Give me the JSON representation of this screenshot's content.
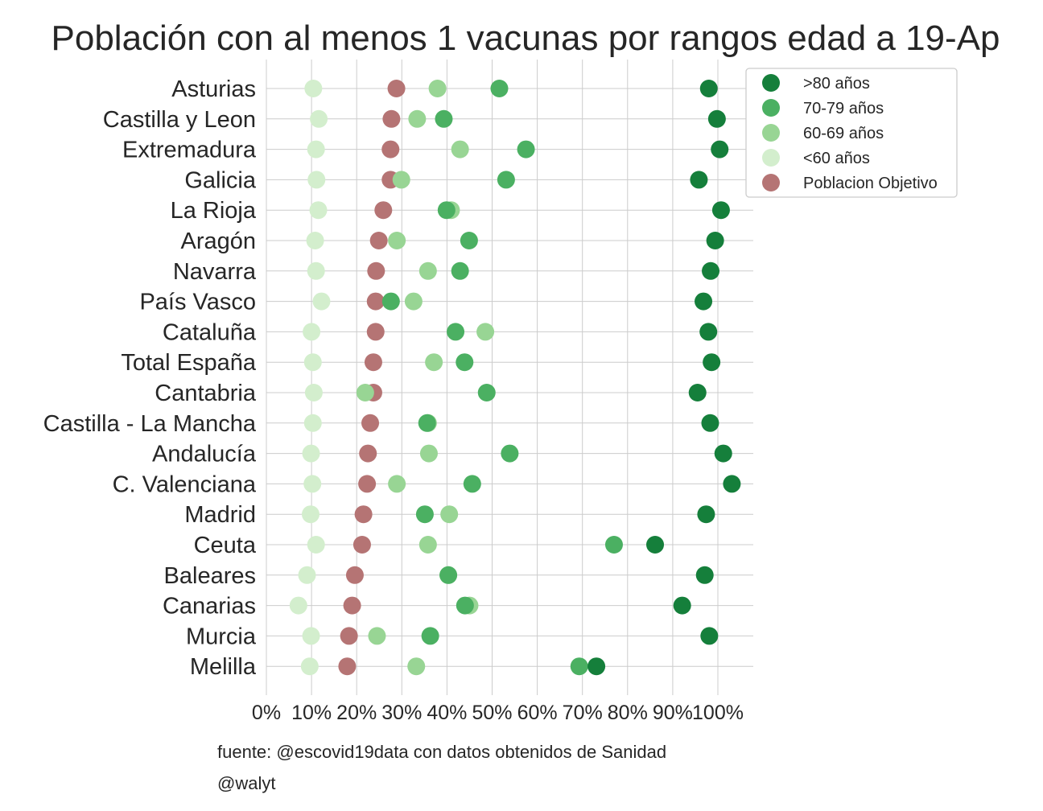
{
  "chart_data": {
    "type": "scatter",
    "title": "Población con al menos 1 vacunas por rangos edad a 19-Ap",
    "xlabel": "",
    "ylabel": "",
    "xlim": [
      0,
      108
    ],
    "xticks": [
      "0%",
      "10%",
      "20%",
      "30%",
      "40%",
      "50%",
      "60%",
      "70%",
      "80%",
      "90%",
      "100%"
    ],
    "grid": true,
    "legend_position": "top-right, outside plot",
    "highlight_category": "Total España",
    "highlight_color": "#ff0000",
    "categories": [
      "Asturias",
      "Castilla y Leon",
      "Extremadura",
      "Galicia",
      "La Rioja",
      "Aragón",
      "Navarra",
      "País Vasco",
      "Cataluña",
      "Total España",
      "Cantabria",
      "Castilla - La Mancha",
      "Andalucía",
      "C. Valenciana",
      "Madrid",
      "Ceuta",
      "Baleares",
      "Canarias",
      "Murcia",
      "Melilla"
    ],
    "series": [
      {
        "name": "Poblacion Objetivo",
        "color": "#b57474",
        "values": [
          28.8,
          27.7,
          27.5,
          27.5,
          25.9,
          24.9,
          24.3,
          24.2,
          24.2,
          23.7,
          23.7,
          23.0,
          22.5,
          22.3,
          21.5,
          21.2,
          19.6,
          19.0,
          18.3,
          17.9
        ]
      },
      {
        "name": "<60 años",
        "color": "#d3eecd",
        "values": [
          10.4,
          11.6,
          11.0,
          11.1,
          11.5,
          10.8,
          11.0,
          12.2,
          10.0,
          10.3,
          10.5,
          10.3,
          9.9,
          10.2,
          9.8,
          11.0,
          9.0,
          7.1,
          9.9,
          9.6
        ]
      },
      {
        "name": "60-69 años",
        "color": "#98d594",
        "values": [
          37.9,
          33.4,
          42.9,
          29.9,
          40.9,
          28.9,
          35.8,
          32.6,
          48.5,
          37.1,
          21.9,
          35.8,
          36.0,
          28.9,
          40.5,
          35.8,
          40.3,
          45.0,
          24.5,
          33.2
        ]
      },
      {
        "name": "70-79 años",
        "color": "#4bb062",
        "values": [
          51.6,
          39.3,
          57.5,
          53.1,
          39.9,
          44.9,
          42.9,
          27.6,
          41.9,
          43.9,
          48.8,
          35.6,
          53.9,
          45.6,
          35.1,
          77.0,
          40.3,
          44.0,
          36.3,
          69.3
        ]
      },
      {
        "name": ">80 años",
        "color": "#157f3b",
        "values": [
          98.0,
          99.8,
          100.4,
          95.8,
          100.7,
          99.4,
          98.4,
          96.8,
          97.9,
          98.6,
          95.5,
          98.3,
          101.2,
          103.1,
          97.4,
          86.1,
          97.1,
          92.1,
          98.1,
          73.1
        ]
      }
    ],
    "legend_order": [
      ">80 años",
      "70-79 años",
      "60-69 años",
      "<60 años",
      "Poblacion Objetivo"
    ],
    "footnotes": [
      "fuente: @escovid19data con datos obtenidos de Sanidad",
      "@walyt"
    ]
  }
}
